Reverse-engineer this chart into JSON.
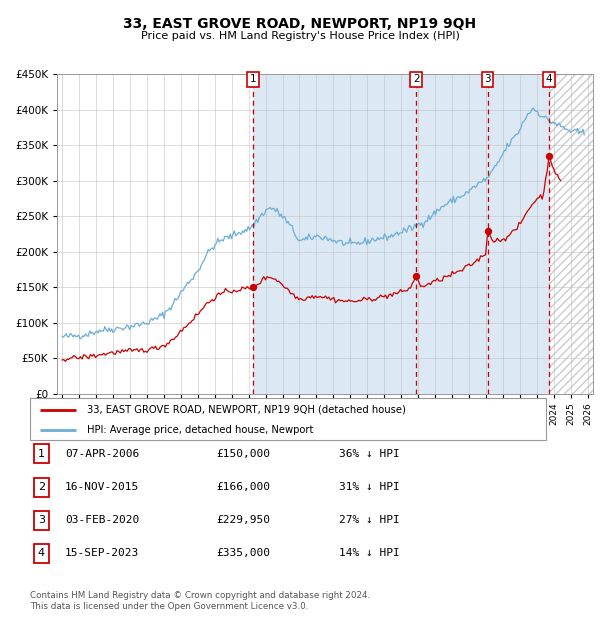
{
  "title": "33, EAST GROVE ROAD, NEWPORT, NP19 9QH",
  "subtitle": "Price paid vs. HM Land Registry's House Price Index (HPI)",
  "legend_line1": "33, EAST GROVE ROAD, NEWPORT, NP19 9QH (detached house)",
  "legend_line2": "HPI: Average price, detached house, Newport",
  "footnote1": "Contains HM Land Registry data © Crown copyright and database right 2024.",
  "footnote2": "This data is licensed under the Open Government Licence v3.0.",
  "transactions": [
    {
      "num": 1,
      "date": "2006-04-07",
      "price": 150000,
      "pct": "36%",
      "x_year": 2006.27
    },
    {
      "num": 2,
      "date": "2015-11-16",
      "price": 166000,
      "pct": "31%",
      "x_year": 2015.88
    },
    {
      "num": 3,
      "date": "2020-02-03",
      "price": 229950,
      "pct": "27%",
      "x_year": 2020.09
    },
    {
      "num": 4,
      "date": "2023-09-15",
      "price": 335000,
      "pct": "14%",
      "x_year": 2023.71
    }
  ],
  "table_rows": [
    {
      "num": 1,
      "date": "07-APR-2006",
      "price": "£150,000",
      "pct": "36% ↓ HPI"
    },
    {
      "num": 2,
      "date": "16-NOV-2015",
      "price": "£166,000",
      "pct": "31% ↓ HPI"
    },
    {
      "num": 3,
      "date": "03-FEB-2020",
      "price": "£229,950",
      "pct": "27% ↓ HPI"
    },
    {
      "num": 4,
      "date": "15-SEP-2023",
      "price": "£335,000",
      "pct": "14% ↓ HPI"
    }
  ],
  "red_color": "#cc0000",
  "blue_color": "#6baed6",
  "light_blue_bg": "#dce9f5",
  "grid_color": "#bbbbbb",
  "ylim": [
    0,
    450000
  ],
  "yticks": [
    0,
    50000,
    100000,
    150000,
    200000,
    250000,
    300000,
    350000,
    400000,
    450000
  ],
  "xlim_start": 1994.7,
  "xlim_end": 2026.3,
  "shade_start": 2006.27,
  "shade_end": 2023.71,
  "hatch_start": 2023.71,
  "hpi_anchors": [
    [
      1995.0,
      80000
    ],
    [
      1995.5,
      81000
    ],
    [
      1996.0,
      82000
    ],
    [
      1996.5,
      84000
    ],
    [
      1997.0,
      88000
    ],
    [
      1997.5,
      90000
    ],
    [
      1998.0,
      91000
    ],
    [
      1998.5,
      93000
    ],
    [
      1999.0,
      95000
    ],
    [
      1999.5,
      97000
    ],
    [
      2000.0,
      100000
    ],
    [
      2000.5,
      105000
    ],
    [
      2001.0,
      112000
    ],
    [
      2001.5,
      125000
    ],
    [
      2002.0,
      142000
    ],
    [
      2002.5,
      158000
    ],
    [
      2003.0,
      173000
    ],
    [
      2003.5,
      195000
    ],
    [
      2004.0,
      210000
    ],
    [
      2004.5,
      218000
    ],
    [
      2005.0,
      222000
    ],
    [
      2005.5,
      228000
    ],
    [
      2006.0,
      232000
    ],
    [
      2006.3,
      238000
    ],
    [
      2006.7,
      250000
    ],
    [
      2007.0,
      258000
    ],
    [
      2007.3,
      262000
    ],
    [
      2007.5,
      260000
    ],
    [
      2008.0,
      250000
    ],
    [
      2008.5,
      235000
    ],
    [
      2009.0,
      215000
    ],
    [
      2009.5,
      218000
    ],
    [
      2010.0,
      222000
    ],
    [
      2010.5,
      220000
    ],
    [
      2011.0,
      216000
    ],
    [
      2011.5,
      213000
    ],
    [
      2012.0,
      210000
    ],
    [
      2012.5,
      212000
    ],
    [
      2013.0,
      215000
    ],
    [
      2013.5,
      218000
    ],
    [
      2014.0,
      220000
    ],
    [
      2014.5,
      223000
    ],
    [
      2015.0,
      228000
    ],
    [
      2015.5,
      232000
    ],
    [
      2016.0,
      238000
    ],
    [
      2016.5,
      245000
    ],
    [
      2017.0,
      255000
    ],
    [
      2017.5,
      265000
    ],
    [
      2018.0,
      272000
    ],
    [
      2018.5,
      278000
    ],
    [
      2019.0,
      285000
    ],
    [
      2019.5,
      295000
    ],
    [
      2020.0,
      302000
    ],
    [
      2020.3,
      310000
    ],
    [
      2020.7,
      325000
    ],
    [
      2021.0,
      338000
    ],
    [
      2021.3,
      350000
    ],
    [
      2021.7,
      362000
    ],
    [
      2022.0,
      372000
    ],
    [
      2022.3,
      388000
    ],
    [
      2022.6,
      398000
    ],
    [
      2022.8,
      402000
    ],
    [
      2023.0,
      398000
    ],
    [
      2023.3,
      392000
    ],
    [
      2023.5,
      388000
    ],
    [
      2023.7,
      385000
    ],
    [
      2024.0,
      382000
    ],
    [
      2024.3,
      378000
    ],
    [
      2024.7,
      373000
    ],
    [
      2025.0,
      370000
    ],
    [
      2025.5,
      368000
    ],
    [
      2025.8,
      367000
    ]
  ],
  "red_anchors": [
    [
      1995.0,
      49000
    ],
    [
      1995.5,
      50000
    ],
    [
      1996.0,
      51000
    ],
    [
      1996.5,
      52000
    ],
    [
      1997.0,
      54000
    ],
    [
      1997.5,
      56000
    ],
    [
      1998.0,
      58000
    ],
    [
      1998.5,
      59000
    ],
    [
      1999.0,
      60000
    ],
    [
      1999.5,
      61000
    ],
    [
      2000.0,
      62000
    ],
    [
      2000.5,
      64000
    ],
    [
      2001.0,
      68000
    ],
    [
      2001.5,
      76000
    ],
    [
      2002.0,
      88000
    ],
    [
      2002.5,
      100000
    ],
    [
      2003.0,
      112000
    ],
    [
      2003.5,
      126000
    ],
    [
      2004.0,
      136000
    ],
    [
      2004.5,
      142000
    ],
    [
      2005.0,
      145000
    ],
    [
      2005.5,
      147000
    ],
    [
      2006.0,
      148500
    ],
    [
      2006.27,
      150000
    ],
    [
      2006.5,
      154000
    ],
    [
      2006.8,
      160000
    ],
    [
      2007.0,
      163000
    ],
    [
      2007.2,
      165000
    ],
    [
      2007.5,
      163000
    ],
    [
      2008.0,
      154000
    ],
    [
      2008.5,
      142000
    ],
    [
      2009.0,
      133000
    ],
    [
      2009.5,
      136000
    ],
    [
      2010.0,
      138000
    ],
    [
      2010.5,
      136000
    ],
    [
      2011.0,
      133000
    ],
    [
      2011.5,
      131000
    ],
    [
      2012.0,
      130000
    ],
    [
      2012.5,
      131000
    ],
    [
      2013.0,
      133000
    ],
    [
      2013.5,
      135000
    ],
    [
      2014.0,
      137000
    ],
    [
      2014.5,
      140000
    ],
    [
      2015.0,
      143000
    ],
    [
      2015.5,
      148000
    ],
    [
      2015.88,
      166000
    ],
    [
      2016.1,
      152000
    ],
    [
      2016.5,
      153000
    ],
    [
      2017.0,
      158000
    ],
    [
      2017.5,
      163000
    ],
    [
      2018.0,
      168000
    ],
    [
      2018.5,
      173000
    ],
    [
      2019.0,
      180000
    ],
    [
      2019.5,
      188000
    ],
    [
      2020.0,
      198000
    ],
    [
      2020.09,
      229950
    ],
    [
      2020.25,
      222000
    ],
    [
      2020.5,
      215000
    ],
    [
      2021.0,
      218000
    ],
    [
      2021.5,
      225000
    ],
    [
      2022.0,
      238000
    ],
    [
      2022.5,
      260000
    ],
    [
      2023.0,
      275000
    ],
    [
      2023.4,
      280000
    ],
    [
      2023.71,
      335000
    ],
    [
      2023.85,
      327000
    ],
    [
      2024.0,
      318000
    ],
    [
      2024.2,
      306000
    ],
    [
      2024.4,
      298000
    ]
  ]
}
